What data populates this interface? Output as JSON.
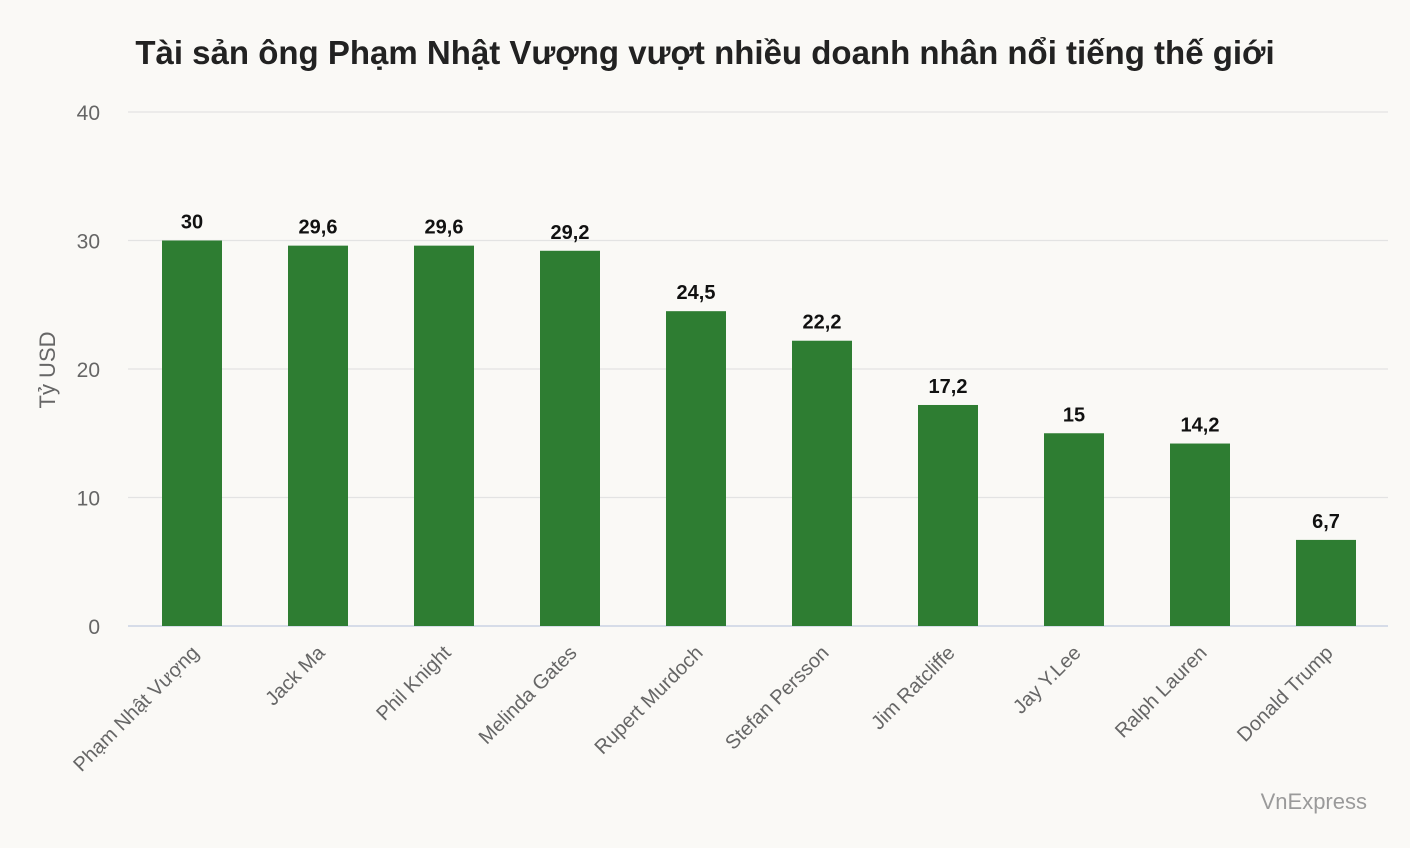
{
  "chart_data": {
    "type": "bar",
    "title": "Tài sản ông Phạm Nhật Vượng vượt nhiều doanh nhân nổi tiếng thế giới",
    "ylabel": "Tỷ USD",
    "xlabel": "",
    "ylim": [
      0,
      40
    ],
    "yticks": [
      "0",
      "10",
      "20",
      "30",
      "40"
    ],
    "grid": true,
    "categories": [
      "Phạm Nhật Vượng",
      "Jack Ma",
      "Phil Knight",
      "Melinda Gates",
      "Rupert Murdoch",
      "Stefan Persson",
      "Jim Ratcliffe",
      "Jay Y.Lee",
      "Ralph Lauren",
      "Donald Trump"
    ],
    "values": [
      30,
      29.6,
      29.6,
      29.2,
      24.5,
      22.2,
      17.2,
      15,
      14.2,
      6.7
    ],
    "value_labels": [
      "30",
      "29,6",
      "29,6",
      "29,2",
      "24,5",
      "22,2",
      "17,2",
      "15",
      "14,2",
      "6,7"
    ],
    "bar_color": "#2e7d32"
  },
  "credit": "VnExpress"
}
